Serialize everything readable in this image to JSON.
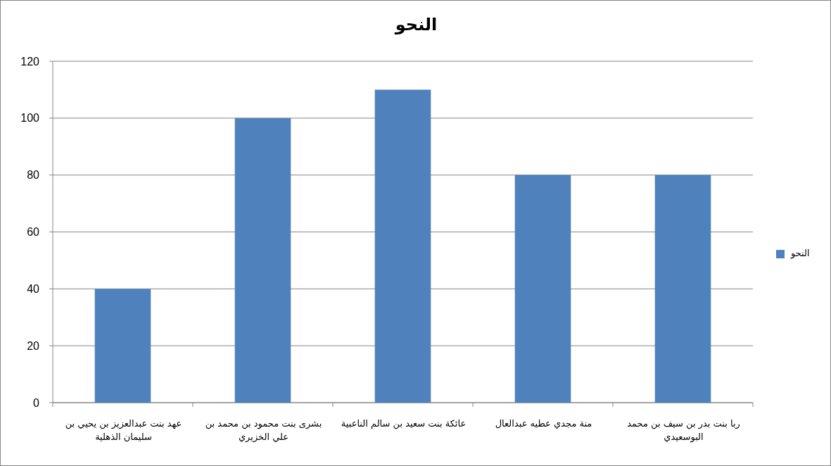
{
  "chart_data": {
    "type": "bar",
    "title": "النحو",
    "categories": [
      "عهد بنت عبدالعزيز بن يحيي بن سليمان الذهلية",
      "بشرى بنت محمود بن محمد بن علي الخزيري",
      "عائكة بنت سعيد بن سالم الناعبية",
      "منة مجدي عطيه عبدالعال",
      "ربا بنت بدر بن سيف بن محمد البوسعيدي"
    ],
    "series": [
      {
        "name": "النحو",
        "color": "#4f81bd",
        "values": [
          40,
          100,
          110,
          80,
          80
        ]
      }
    ],
    "ylim": [
      0,
      120
    ],
    "yticks": [
      0,
      20,
      40,
      60,
      80,
      100,
      120
    ],
    "grid": "y",
    "legend": "right"
  }
}
